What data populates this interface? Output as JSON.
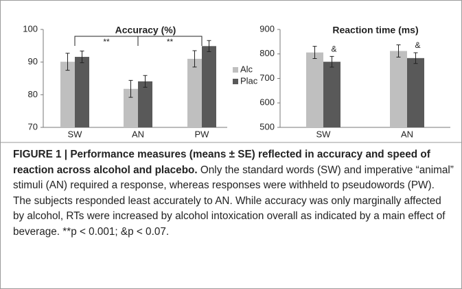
{
  "chart_data": [
    {
      "type": "bar",
      "title": "Accuracy (%)",
      "categories": [
        "SW",
        "AN",
        "PW"
      ],
      "series": [
        {
          "name": "Alc",
          "color": "#bfbfbf",
          "values": [
            90.1,
            81.8,
            91.0
          ],
          "errors": [
            2.6,
            2.6,
            2.5
          ]
        },
        {
          "name": "Plac",
          "color": "#595959",
          "values": [
            91.6,
            84.1,
            94.9
          ],
          "errors": [
            1.8,
            1.8,
            1.7
          ]
        }
      ],
      "ylim": [
        70,
        100
      ],
      "yticks": [
        70,
        80,
        90,
        100
      ],
      "legend": "right",
      "annotations": [
        "**",
        "**"
      ]
    },
    {
      "type": "bar",
      "title": "Reaction time (ms)",
      "categories": [
        "SW",
        "AN"
      ],
      "series": [
        {
          "name": "Alc",
          "color": "#bfbfbf",
          "values": [
            806,
            812
          ],
          "errors": [
            25,
            25
          ]
        },
        {
          "name": "Plac",
          "color": "#595959",
          "values": [
            768,
            783
          ],
          "errors": [
            22,
            22
          ]
        }
      ],
      "ylim": [
        500,
        900
      ],
      "yticks": [
        500,
        600,
        700,
        800,
        900
      ],
      "annotations": [
        "&",
        "&"
      ]
    }
  ],
  "caption": {
    "heading": "FIGURE 1 | Performance measures (means ± SE) reflected in accuracy and speed of reaction across alcohol and placebo.",
    "body": "Only the standard words (SW) and imperative “animal” stimuli (AN) required a response, whereas responses were withheld to pseudowords (PW). The subjects responded least accurately to AN. While accuracy was only marginally affected by alcohol, RTs were increased by alcohol intoxication overall as indicated by a main effect of beverage. **p < 0.001; &p < 0.07."
  }
}
